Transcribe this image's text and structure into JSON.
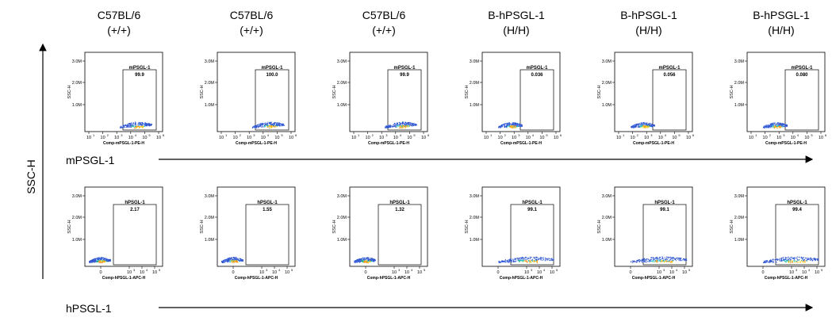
{
  "figure": {
    "y_axis_label": "SSC-H",
    "column_headers": [
      {
        "line1": "C57BL/6",
        "line2": "(+/+)"
      },
      {
        "line1": "C57BL/6",
        "line2": "(+/+)"
      },
      {
        "line1": "C57BL/6",
        "line2": "(+/+)"
      },
      {
        "line1": "B-hPSGL-1",
        "line2": "(H/H)"
      },
      {
        "line1": "B-hPSGL-1",
        "line2": "(H/H)"
      },
      {
        "line1": "B-hPSGL-1",
        "line2": "(H/H)"
      }
    ],
    "row_labels": [
      "mPSGL-1",
      "hPSGL-1"
    ]
  },
  "chart_data": {
    "type": "scatter",
    "ylabel": "SSC-H",
    "y_ticks": [
      "1.0M",
      "2.0M",
      "3.0M"
    ],
    "rows": [
      {
        "row_label": "mPSGL-1",
        "xlabel": "Comp-mPSGL-1-PE-H",
        "x_ticks": [
          "10",
          "10",
          "10",
          "10",
          "10",
          "10"
        ],
        "x_tick_exponents": [
          "1",
          "2",
          "3",
          "4",
          "5",
          "6"
        ],
        "gate_name": "mPSGL-1",
        "gate_values": [
          "99.9",
          "100.0",
          "99.9",
          "0.036",
          "0.056",
          "0.080"
        ],
        "positive": [
          true,
          true,
          true,
          false,
          false,
          false
        ]
      },
      {
        "row_label": "hPSGL-1",
        "xlabel": "Comp-hPSGL-1-APC-H",
        "x_ticks": [
          "0",
          "10",
          "10",
          "10"
        ],
        "x_tick_exponents": [
          "",
          "3",
          "4",
          "5"
        ],
        "gate_name": "hPSGL-1",
        "gate_values": [
          "2.17",
          "1.55",
          "1.32",
          "99.1",
          "99.1",
          "99.4"
        ],
        "positive": [
          false,
          false,
          false,
          true,
          true,
          true
        ]
      }
    ]
  }
}
